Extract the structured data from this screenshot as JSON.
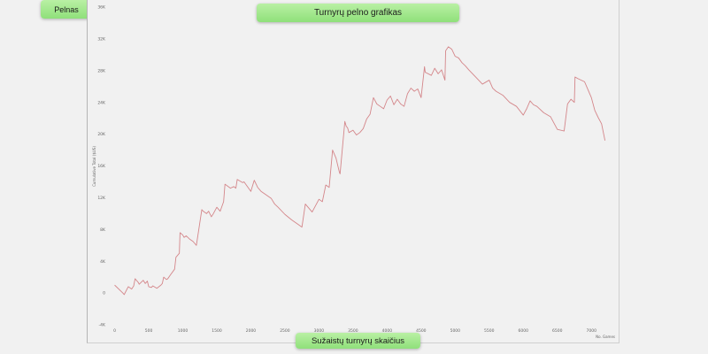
{
  "buttons": {
    "pelnas_label": "Pelnas"
  },
  "chart_data": {
    "type": "line",
    "title": "Turnyrų pelno grafikas",
    "xlabel": "Sužaistų turnyrų skaičius",
    "xaxis_caption": "No. Games",
    "ylabel": "Cumulative Total ($US)",
    "xlim": [
      -150,
      7400
    ],
    "ylim": [
      -4000,
      36000
    ],
    "x_ticks": [
      0,
      500,
      1000,
      1500,
      2000,
      2500,
      3000,
      3500,
      4000,
      4500,
      5000,
      5500,
      6000,
      6500,
      7000
    ],
    "x_tick_labels": [
      "0",
      "500",
      "1000",
      "1500",
      "2000",
      "2500",
      "3000",
      "3500",
      "4000",
      "4500",
      "5000",
      "5500",
      "6000",
      "6500",
      "7000"
    ],
    "y_ticks": [
      -4000,
      0,
      4000,
      8000,
      12000,
      16000,
      20000,
      24000,
      28000,
      32000,
      36000
    ],
    "y_tick_labels": [
      "-4K",
      "0",
      "4K",
      "8K",
      "12K",
      "16K",
      "20K",
      "24K",
      "28K",
      "32K",
      "36K"
    ],
    "line_color": "#d4868a",
    "grid": false,
    "series": [
      {
        "x": [
          0,
          120,
          140,
          200,
          250,
          280,
          300,
          350,
          360,
          420,
          450,
          480,
          500,
          540,
          560,
          620,
          680,
          700,
          720,
          760,
          780,
          820,
          880,
          900,
          950,
          960,
          1000,
          1020,
          1050,
          1100,
          1150,
          1200,
          1280,
          1300,
          1350,
          1380,
          1420,
          1450,
          1500,
          1550,
          1600,
          1620,
          1700,
          1750,
          1780,
          1800,
          1880,
          1900,
          2000,
          2050,
          2100,
          2150,
          2200,
          2300,
          2350,
          2400,
          2500,
          2600,
          2700,
          2750,
          2800,
          2850,
          2900,
          3000,
          3050,
          3100,
          3150,
          3200,
          3250,
          3300,
          3310,
          3380,
          3400,
          3420,
          3440,
          3500,
          3550,
          3600,
          3650,
          3700,
          3750,
          3800,
          3850,
          3900,
          3950,
          4000,
          4050,
          4100,
          4150,
          4200,
          4250,
          4300,
          4350,
          4400,
          4450,
          4500,
          4550,
          4560,
          4650,
          4700,
          4750,
          4800,
          4850,
          4860,
          4900,
          4950,
          5000,
          5050,
          5100,
          5150,
          5200,
          5300,
          5400,
          5500,
          5550,
          5600,
          5700,
          5800,
          5900,
          6000,
          6050,
          6100,
          6150,
          6200,
          6300,
          6400,
          6500,
          6600,
          6650,
          6700,
          6750,
          6760,
          6800,
          6900,
          6950,
          7000,
          7050,
          7100,
          7150,
          7200
        ],
        "y": [
          1000,
          0,
          -200,
          800,
          500,
          900,
          1800,
          1300,
          1100,
          1600,
          1200,
          1500,
          800,
          700,
          900,
          600,
          1000,
          1200,
          2000,
          1700,
          1800,
          2300,
          3000,
          4500,
          5000,
          7600,
          7300,
          7000,
          7200,
          6800,
          6500,
          6000,
          10500,
          10300,
          10000,
          10300,
          9600,
          10000,
          10800,
          10300,
          11500,
          13700,
          13200,
          13400,
          13200,
          14300,
          13900,
          14000,
          12800,
          14200,
          13300,
          12800,
          12500,
          11900,
          11200,
          10800,
          9900,
          9200,
          8600,
          8300,
          11200,
          10700,
          10200,
          11800,
          11500,
          13600,
          13300,
          18000,
          17000,
          15200,
          15000,
          21600,
          21000,
          20800,
          20200,
          20500,
          19900,
          20200,
          20700,
          21900,
          22500,
          24600,
          23800,
          23500,
          23200,
          24300,
          24800,
          23700,
          24400,
          23800,
          23500,
          25100,
          25800,
          25400,
          25700,
          24600,
          28500,
          27800,
          27400,
          28300,
          27600,
          28100,
          26800,
          30500,
          31000,
          30700,
          29800,
          29600,
          29000,
          28600,
          28100,
          27200,
          26300,
          26800,
          25800,
          25400,
          24900,
          24000,
          23500,
          22400,
          23200,
          24200,
          23700,
          23500,
          22700,
          22200,
          20600,
          20400,
          23800,
          24400,
          24000,
          27200,
          27000,
          26600,
          25600,
          24600,
          23000,
          22100,
          21300,
          19200
        ]
      }
    ]
  }
}
